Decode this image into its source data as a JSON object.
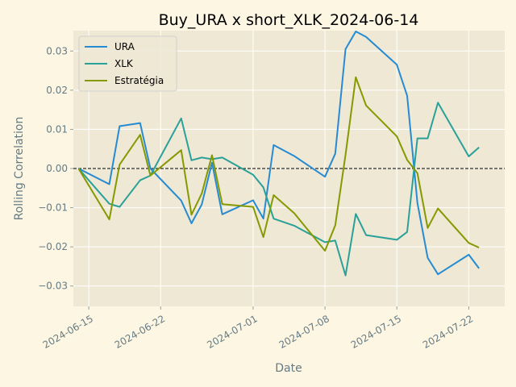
{
  "chart_data": {
    "type": "line",
    "title": "Buy_URA x short_XLK_2024-06-14",
    "xlabel": "Date",
    "ylabel": "Rolling Correlation",
    "x_tick_labels": [
      "2024-06-15",
      "2024-06-22",
      "2024-07-01",
      "2024-07-08",
      "2024-07-15",
      "2024-07-22"
    ],
    "x_ticks": [
      "2024-06-15",
      "2024-06-22",
      "2024-07-01",
      "2024-07-08",
      "2024-07-15",
      "2024-07-22"
    ],
    "y_ticks": [
      -0.03,
      -0.02,
      -0.01,
      0.0,
      0.01,
      0.02,
      0.03
    ],
    "y_tick_labels": [
      "−0.03",
      "−0.02",
      "−0.01",
      "0.00",
      "0.01",
      "0.02",
      "0.03"
    ],
    "xlim": [
      "2024-06-13T12:00",
      "2024-07-25T12:00"
    ],
    "ylim": [
      -0.0352,
      0.0352
    ],
    "grid": true,
    "legend_position": "upper-left",
    "zero_line": {
      "y": 0,
      "style": "dashed",
      "color": "#000000"
    },
    "colors": {
      "background": "#fdf6e3",
      "plot_background": "#eee8d5",
      "grid": "#ffffff",
      "spine": "#ffffff"
    },
    "series": [
      {
        "name": "URA",
        "color": "#268bd2",
        "points": [
          [
            "2024-06-14",
            0.0
          ],
          [
            "2024-06-17",
            -0.004
          ],
          [
            "2024-06-18",
            0.0108
          ],
          [
            "2024-06-20",
            0.0116
          ],
          [
            "2024-06-21",
            0.0
          ],
          [
            "2024-06-24",
            -0.0082
          ],
          [
            "2024-06-25",
            -0.014
          ],
          [
            "2024-06-26",
            -0.0092
          ],
          [
            "2024-06-27",
            0.0015
          ],
          [
            "2024-06-28",
            -0.0117
          ],
          [
            "2024-07-01",
            -0.0081
          ],
          [
            "2024-07-02",
            -0.0128
          ],
          [
            "2024-07-03",
            0.006
          ],
          [
            "2024-07-05",
            0.0032
          ],
          [
            "2024-07-08",
            -0.0021
          ],
          [
            "2024-07-09",
            0.0038
          ],
          [
            "2024-07-10",
            0.0305
          ],
          [
            "2024-07-11",
            0.035
          ],
          [
            "2024-07-12",
            0.0336
          ],
          [
            "2024-07-15",
            0.0265
          ],
          [
            "2024-07-16",
            0.0186
          ],
          [
            "2024-07-17",
            -0.0088
          ],
          [
            "2024-07-18",
            -0.0228
          ],
          [
            "2024-07-19",
            -0.027
          ],
          [
            "2024-07-22",
            -0.022
          ],
          [
            "2024-07-23",
            -0.0255
          ]
        ]
      },
      {
        "name": "XLK",
        "color": "#2aa198",
        "points": [
          [
            "2024-06-14",
            0.0
          ],
          [
            "2024-06-17",
            -0.009
          ],
          [
            "2024-06-18",
            -0.0098
          ],
          [
            "2024-06-20",
            -0.003
          ],
          [
            "2024-06-21",
            -0.0018
          ],
          [
            "2024-06-24",
            0.0128
          ],
          [
            "2024-06-25",
            0.0021
          ],
          [
            "2024-06-26",
            0.0028
          ],
          [
            "2024-06-27",
            0.0024
          ],
          [
            "2024-06-28",
            0.0028
          ],
          [
            "2024-07-01",
            -0.0016
          ],
          [
            "2024-07-02",
            -0.0048
          ],
          [
            "2024-07-03",
            -0.0128
          ],
          [
            "2024-07-05",
            -0.0146
          ],
          [
            "2024-07-08",
            -0.0188
          ],
          [
            "2024-07-09",
            -0.0184
          ],
          [
            "2024-07-10",
            -0.0273
          ],
          [
            "2024-07-11",
            -0.0116
          ],
          [
            "2024-07-12",
            -0.017
          ],
          [
            "2024-07-15",
            -0.0182
          ],
          [
            "2024-07-16",
            -0.0162
          ],
          [
            "2024-07-17",
            0.0077
          ],
          [
            "2024-07-18",
            0.0077
          ],
          [
            "2024-07-19",
            0.0168
          ],
          [
            "2024-07-22",
            0.0031
          ],
          [
            "2024-07-23",
            0.0054
          ]
        ]
      },
      {
        "name": "Estratégia",
        "color": "#859900",
        "points": [
          [
            "2024-06-14",
            0.0
          ],
          [
            "2024-06-17",
            -0.013
          ],
          [
            "2024-06-18",
            0.001
          ],
          [
            "2024-06-20",
            0.0086
          ],
          [
            "2024-06-21",
            -0.0018
          ],
          [
            "2024-06-24",
            0.0047
          ],
          [
            "2024-06-25",
            -0.0118
          ],
          [
            "2024-06-26",
            -0.0064
          ],
          [
            "2024-06-27",
            0.0034
          ],
          [
            "2024-06-28",
            -0.0091
          ],
          [
            "2024-07-01",
            -0.0098
          ],
          [
            "2024-07-02",
            -0.0175
          ],
          [
            "2024-07-03",
            -0.0068
          ],
          [
            "2024-07-05",
            -0.0114
          ],
          [
            "2024-07-08",
            -0.021
          ],
          [
            "2024-07-09",
            -0.0145
          ],
          [
            "2024-07-10",
            0.0035
          ],
          [
            "2024-07-11",
            0.0233
          ],
          [
            "2024-07-12",
            0.0161
          ],
          [
            "2024-07-15",
            0.0082
          ],
          [
            "2024-07-16",
            0.0022
          ],
          [
            "2024-07-17",
            -0.0012
          ],
          [
            "2024-07-18",
            -0.0152
          ],
          [
            "2024-07-19",
            -0.0102
          ],
          [
            "2024-07-22",
            -0.019
          ],
          [
            "2024-07-23",
            -0.0202
          ]
        ]
      }
    ]
  }
}
